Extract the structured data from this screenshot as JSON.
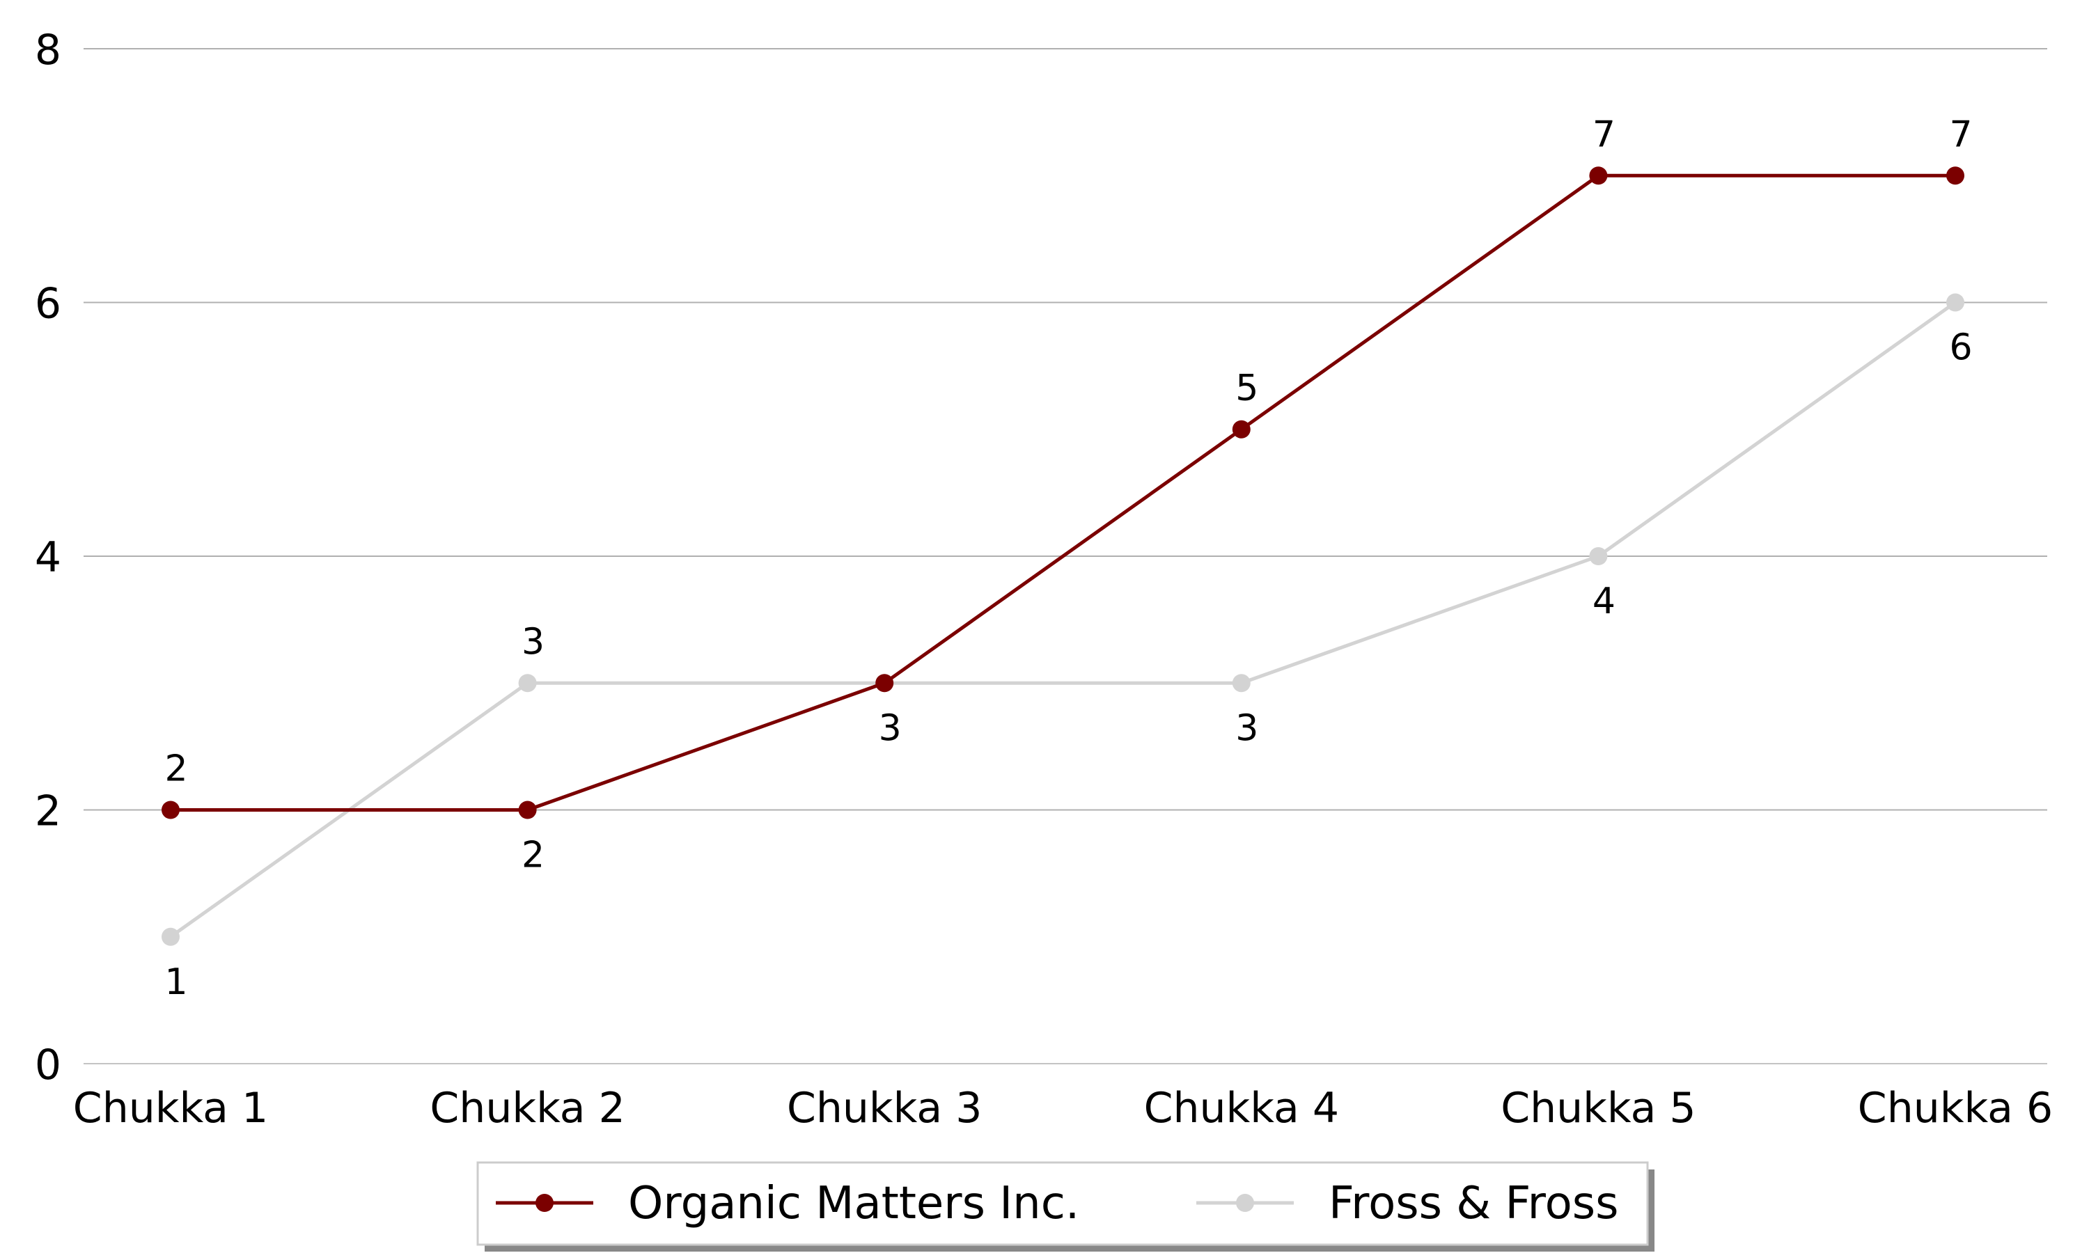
{
  "chart_data": {
    "type": "line",
    "categories": [
      "Chukka 1",
      "Chukka 2",
      "Chukka 3",
      "Chukka 4",
      "Chukka 5",
      "Chukka 6"
    ],
    "series": [
      {
        "name": "Organic Matters Inc.",
        "values": [
          2,
          2,
          3,
          5,
          7,
          7
        ],
        "color": "#7b0000",
        "label_positions": [
          "above",
          "below",
          "none",
          "above",
          "above",
          "above"
        ]
      },
      {
        "name": "Fross & Fross",
        "values": [
          1,
          3,
          3,
          3,
          4,
          6
        ],
        "color": "#d3d3d3",
        "label_positions": [
          "below",
          "above",
          "below",
          "below",
          "below",
          "below"
        ]
      }
    ],
    "title": "",
    "xlabel": "",
    "ylabel": "",
    "ylim": [
      0,
      8
    ],
    "yticks": [
      0,
      2,
      4,
      6,
      8
    ],
    "grid": "horizontal",
    "gridline_color": "#b0b0b0",
    "legend_placement": "bottom-center"
  }
}
